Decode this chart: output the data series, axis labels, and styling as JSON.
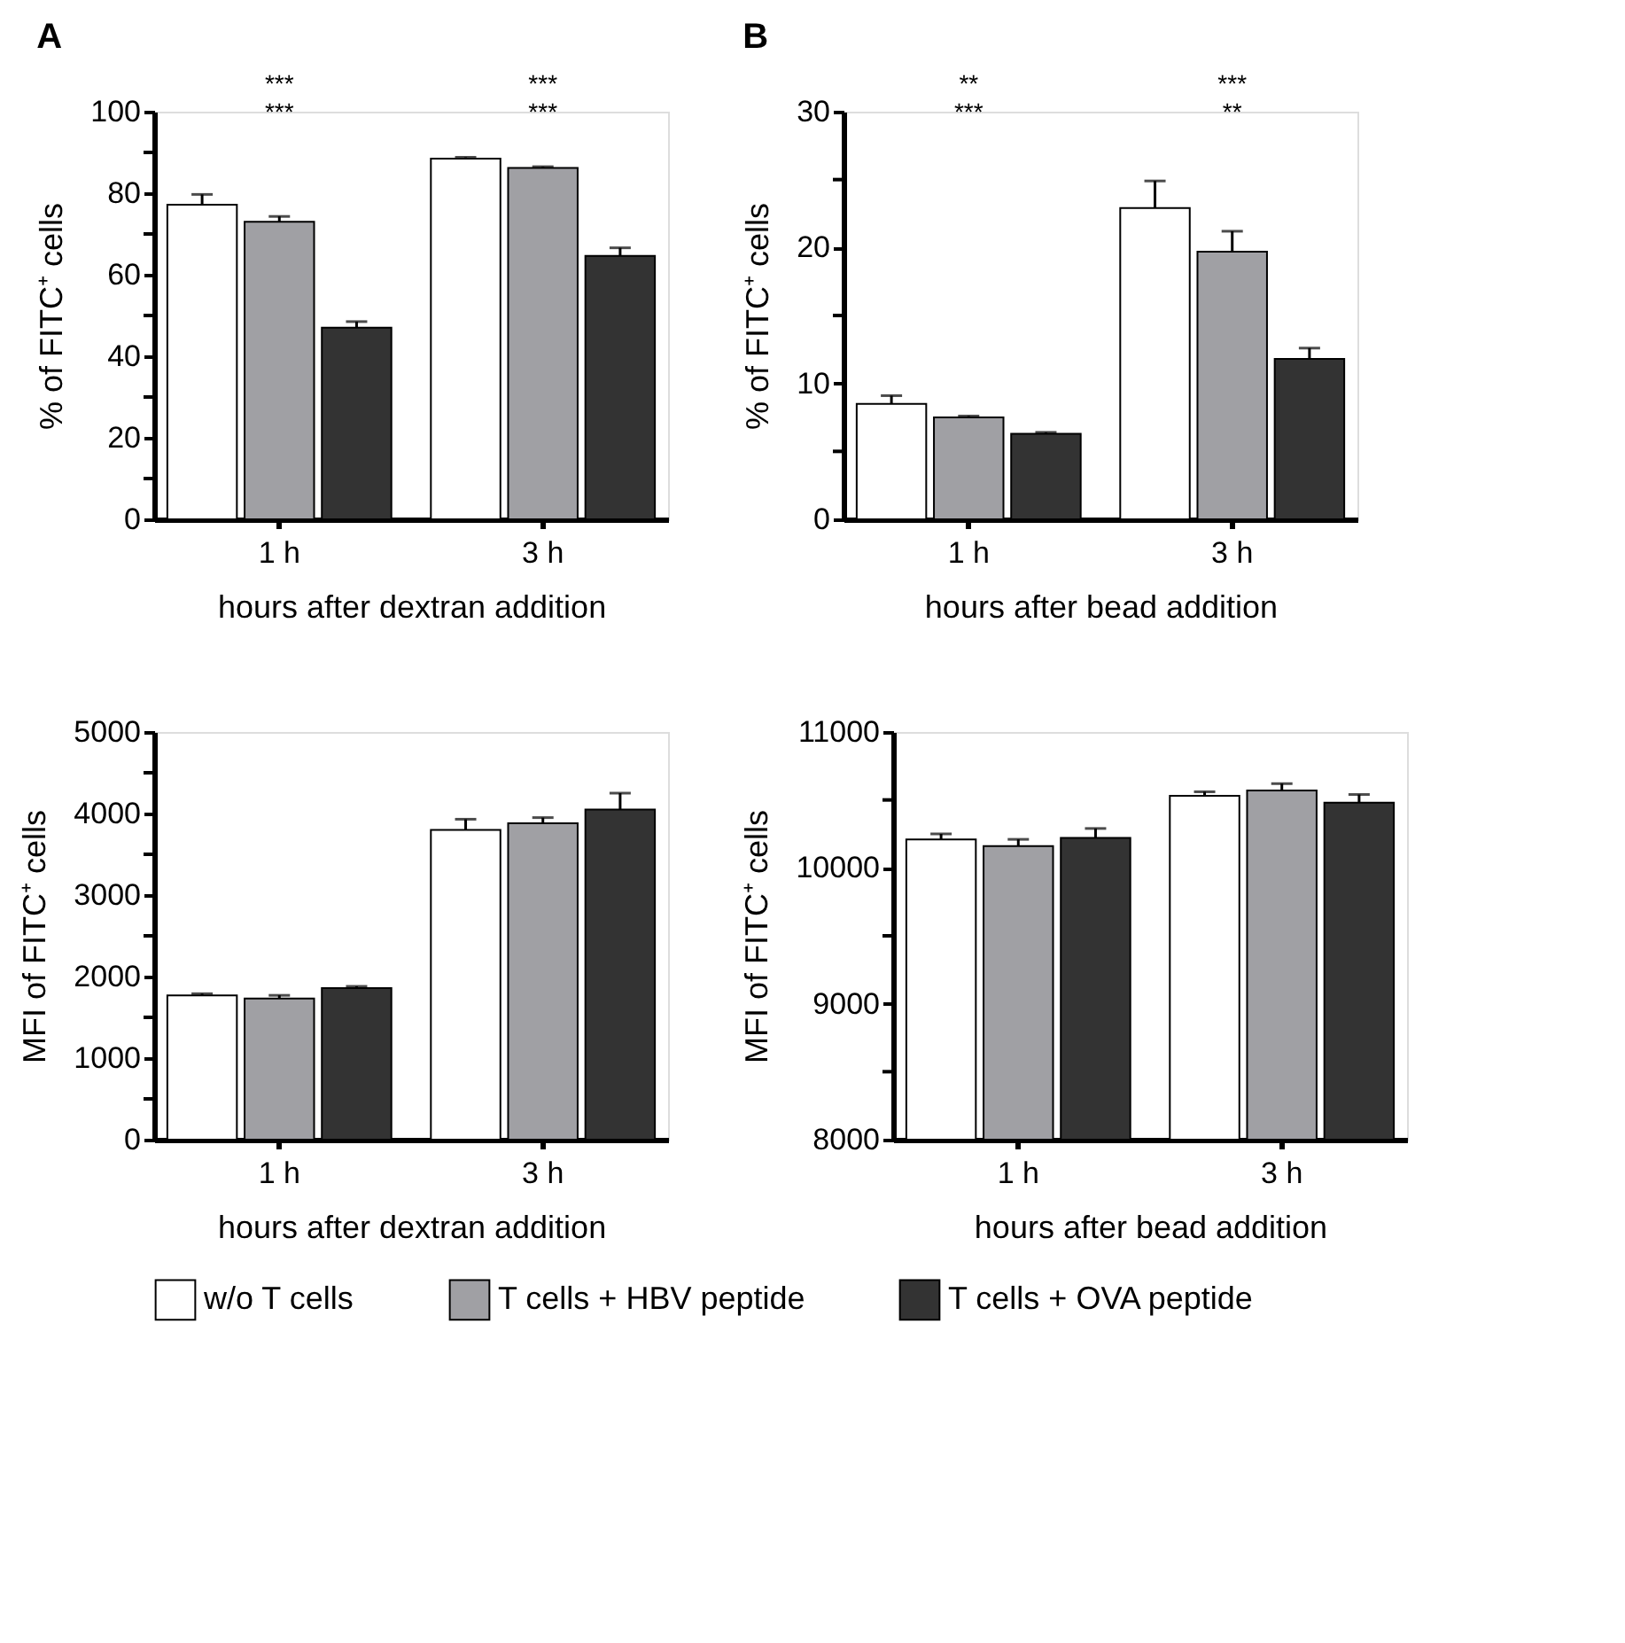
{
  "chart_data": [
    {
      "type": "bar",
      "title": "A",
      "categories": [
        "1 h",
        "3 h"
      ],
      "xlabel": "hours after dextran addition",
      "ylabel": "% of FITC⁺ cells",
      "ylim": [
        0,
        100
      ],
      "yticks": [
        0,
        {
          "value": 10,
          "label": null
        },
        20,
        {
          "value": 30,
          "label": null
        },
        40,
        {
          "value": 50,
          "label": null
        },
        60,
        {
          "value": 70,
          "label": null
        },
        80,
        {
          "value": 90,
          "label": null
        },
        100
      ],
      "legend": "bottom",
      "grid": false,
      "series": [
        {
          "name": "w/o T cells",
          "color": "#ffffff",
          "values": [
            77.2,
            88.5
          ],
          "errors": [
            2.5,
            0.3
          ]
        },
        {
          "name": "T cells + HBV peptide",
          "color": "#a0a0a4",
          "values": [
            73,
            86.2
          ],
          "errors": [
            1.3,
            0.3
          ]
        },
        {
          "name": "T cells + OVA peptide",
          "color": "#333333",
          "values": [
            47,
            64.6
          ],
          "errors": [
            1.5,
            2
          ]
        }
      ],
      "annotations": [
        "***",
        "***",
        "***",
        "***"
      ]
    },
    {
      "type": "bar",
      "title": "B",
      "categories": [
        "1 h",
        "3 h"
      ],
      "xlabel": "hours after bead addition",
      "ylabel": "% of FITC⁺ cells",
      "ylim": [
        0,
        30
      ],
      "yticks": [
        0,
        {
          "value": 5,
          "label": null
        },
        10,
        {
          "value": 15,
          "label": null
        },
        20,
        {
          "value": 25,
          "label": null
        },
        30
      ],
      "legend": "bottom",
      "grid": false,
      "series": [
        {
          "name": "w/o T cells",
          "color": "#ffffff",
          "values": [
            8.5,
            22.9
          ],
          "errors": [
            0.6,
            2
          ]
        },
        {
          "name": "T cells + HBV peptide",
          "color": "#a0a0a4",
          "values": [
            7.5,
            19.7
          ],
          "errors": [
            0.1,
            1.5
          ]
        },
        {
          "name": "T cells + OVA peptide",
          "color": "#333333",
          "values": [
            6.3,
            11.8
          ],
          "errors": [
            0.1,
            0.8
          ]
        }
      ],
      "annotations": [
        "**",
        "***",
        "***",
        "**"
      ]
    },
    {
      "type": "bar",
      "categories": [
        "1 h",
        "3 h"
      ],
      "xlabel": "hours after dextran addition",
      "ylabel": "MFI of FITC⁺ cells",
      "ylim": [
        0,
        5000
      ],
      "yticks": [
        0,
        {
          "value": 500,
          "label": null
        },
        1000,
        {
          "value": 1500,
          "label": null
        },
        2000,
        {
          "value": 2500,
          "label": null
        },
        3000,
        {
          "value": 3500,
          "label": null
        },
        4000,
        {
          "value": 4500,
          "label": null
        },
        5000
      ],
      "legend": "bottom",
      "grid": false,
      "series": [
        {
          "name": "w/o T cells",
          "color": "#ffffff",
          "values": [
            1770,
            3800
          ],
          "errors": [
            20,
            130
          ]
        },
        {
          "name": "T cells + HBV peptide",
          "color": "#a0a0a4",
          "values": [
            1730,
            3880
          ],
          "errors": [
            40,
            70
          ]
        },
        {
          "name": "T cells + OVA peptide",
          "color": "#333333",
          "values": [
            1860,
            4050
          ],
          "errors": [
            20,
            200
          ]
        }
      ]
    },
    {
      "type": "bar",
      "categories": [
        "1 h",
        "3 h"
      ],
      "xlabel": "hours after bead addition",
      "ylabel": "MFI of FITC⁺ cells",
      "ylim": [
        8000,
        11000
      ],
      "yticks": [
        8000,
        {
          "value": 8500,
          "label": null
        },
        9000,
        {
          "value": 9500,
          "label": null
        },
        10000,
        {
          "value": 10500,
          "label": null
        },
        11000
      ],
      "legend": "bottom",
      "grid": false,
      "series": [
        {
          "name": "w/o T cells",
          "color": "#ffffff",
          "values": [
            10210,
            10530
          ],
          "errors": [
            40,
            30
          ]
        },
        {
          "name": "T cells + HBV peptide",
          "color": "#a0a0a4",
          "values": [
            10160,
            10570
          ],
          "errors": [
            50,
            50
          ]
        },
        {
          "name": "T cells + OVA peptide",
          "color": "#333333",
          "values": [
            10220,
            10480
          ],
          "errors": [
            70,
            60
          ]
        }
      ]
    }
  ]
}
